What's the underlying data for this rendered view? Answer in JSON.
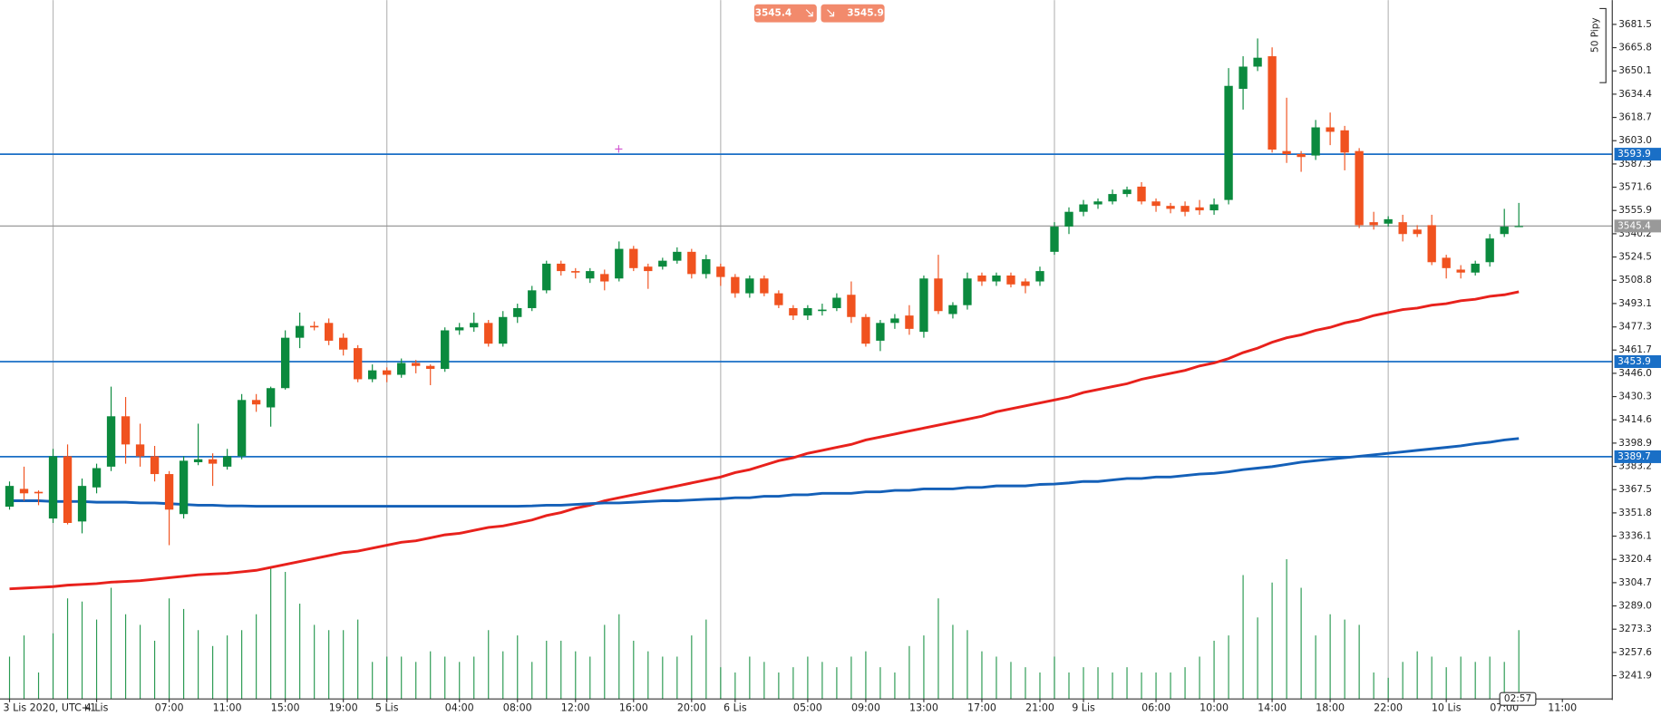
{
  "chart_data": {
    "type": "candlestick",
    "categories": [
      "3 Lis 2020, UTC+1",
      null,
      null,
      null,
      null,
      null,
      "4 Lis",
      null,
      null,
      null,
      null,
      "07:00",
      null,
      null,
      null,
      "11:00",
      null,
      null,
      null,
      "15:00",
      null,
      null,
      null,
      "19:00",
      null,
      null,
      "5 Lis",
      null,
      null,
      null,
      null,
      "04:00",
      null,
      null,
      null,
      "08:00",
      null,
      null,
      null,
      "12:00",
      null,
      null,
      null,
      "16:00",
      null,
      null,
      null,
      "20:00",
      null,
      null,
      "6 Lis",
      null,
      null,
      null,
      null,
      "05:00",
      null,
      null,
      null,
      "09:00",
      null,
      null,
      null,
      "13:00",
      null,
      null,
      null,
      "17:00",
      null,
      null,
      null,
      "21:00",
      null,
      null,
      "9 Lis",
      null,
      null,
      null,
      null,
      "06:00",
      null,
      null,
      null,
      "10:00",
      null,
      null,
      null,
      "14:00",
      null,
      null,
      null,
      "18:00",
      null,
      null,
      null,
      "22:00",
      null,
      null,
      null,
      "10 Lis",
      null,
      null,
      null,
      "07:00",
      null,
      null,
      null,
      "11:00"
    ],
    "open": [
      3356,
      3368,
      3366,
      3348,
      3390,
      3346,
      3369,
      3383,
      3417,
      3398,
      3390,
      3378,
      3351,
      3386,
      3388,
      3383,
      3390,
      3428,
      3423,
      3436,
      3470,
      3478,
      3480,
      3470,
      3463,
      3442,
      3448,
      3445,
      3453,
      3451,
      3449,
      3475,
      3477,
      3480,
      3466,
      3484,
      3490,
      3502,
      3520,
      3515,
      3510,
      3513,
      3510,
      3530,
      3518,
      3518,
      3522,
      3528,
      3513,
      3518,
      3511,
      3500,
      3510,
      3500,
      3490,
      3485,
      3488,
      3490,
      3499,
      3484,
      3468,
      3480,
      3485,
      3474,
      3510,
      3486,
      3492,
      3512,
      3508,
      3512,
      3508,
      3508,
      3528,
      3545,
      3555,
      3560,
      3562,
      3567,
      3572,
      3562,
      3559,
      3559,
      3558,
      3556,
      3563,
      3638,
      3653,
      3660,
      3596,
      3594,
      3593,
      3612,
      3610,
      3596,
      3548,
      3547,
      3548,
      3543,
      3546,
      3524,
      3516,
      3514,
      3521,
      3540,
      3545,
      null,
      null,
      null
    ],
    "high": [
      3373,
      3383,
      3367,
      3395,
      3398,
      3375,
      3385,
      3437,
      3430,
      3412,
      3397,
      3380,
      3390,
      3412,
      3392,
      3395,
      3432,
      3432,
      3437,
      3475,
      3487,
      3481,
      3483,
      3473,
      3465,
      3452,
      3450,
      3456,
      3455,
      3452,
      3477,
      3480,
      3487,
      3482,
      3488,
      3493,
      3505,
      3522,
      3522,
      3517,
      3517,
      3516,
      3535,
      3532,
      3520,
      3524,
      3531,
      3530,
      3526,
      3520,
      3513,
      3512,
      3512,
      3502,
      3492,
      3492,
      3493,
      3500,
      3508,
      3486,
      3482,
      3486,
      3492,
      3512,
      3526,
      3494,
      3514,
      3514,
      3514,
      3514,
      3510,
      3518,
      3548,
      3558,
      3563,
      3564,
      3570,
      3572,
      3575,
      3564,
      3561,
      3562,
      3563,
      3564,
      3652,
      3660,
      3672,
      3666,
      3632,
      3596,
      3617,
      3622,
      3613,
      3598,
      3555,
      3552,
      3553,
      3546,
      3553,
      3526,
      3519,
      3522,
      3540,
      3557,
      3561,
      null,
      null,
      null
    ],
    "low": [
      3354,
      3360,
      3357,
      3345,
      3344,
      3338,
      3365,
      3380,
      3385,
      3383,
      3373,
      3330,
      3348,
      3384,
      3370,
      3381,
      3388,
      3420,
      3410,
      3435,
      3463,
      3475,
      3465,
      3458,
      3440,
      3440,
      3440,
      3443,
      3446,
      3438,
      3447,
      3472,
      3474,
      3464,
      3464,
      3480,
      3488,
      3500,
      3512,
      3510,
      3507,
      3502,
      3508,
      3515,
      3503,
      3516,
      3520,
      3510,
      3510,
      3505,
      3497,
      3497,
      3498,
      3490,
      3482,
      3482,
      3485,
      3488,
      3480,
      3464,
      3461,
      3476,
      3472,
      3470,
      3486,
      3483,
      3489,
      3505,
      3505,
      3504,
      3500,
      3505,
      3526,
      3540,
      3552,
      3557,
      3560,
      3565,
      3560,
      3555,
      3554,
      3552,
      3553,
      3553,
      3560,
      3624,
      3650,
      3595,
      3588,
      3582,
      3590,
      3600,
      3583,
      3544,
      3543,
      3545,
      3535,
      3538,
      3519,
      3510,
      3510,
      3512,
      3518,
      3538,
      3545,
      null,
      null,
      null
    ],
    "close": [
      3370,
      3365,
      3365,
      3390,
      3345,
      3370,
      3382,
      3417,
      3398,
      3390,
      3378,
      3354,
      3387,
      3388,
      3385,
      3390,
      3428,
      3425,
      3436,
      3470,
      3478,
      3477,
      3468,
      3462,
      3442,
      3448,
      3445,
      3453,
      3451,
      3449,
      3475,
      3477,
      3480,
      3466,
      3484,
      3490,
      3502,
      3520,
      3515,
      3514,
      3515,
      3508,
      3530,
      3517,
      3515,
      3522,
      3528,
      3513,
      3523,
      3511,
      3500,
      3510,
      3500,
      3492,
      3485,
      3490,
      3489,
      3497,
      3484,
      3466,
      3480,
      3483,
      3476,
      3510,
      3488,
      3492,
      3510,
      3508,
      3512,
      3506,
      3505,
      3515,
      3545,
      3555,
      3560,
      3562,
      3567,
      3570,
      3562,
      3559,
      3557,
      3555,
      3556,
      3560,
      3640,
      3653,
      3659,
      3597,
      3594,
      3592,
      3612,
      3609,
      3595,
      3546,
      3546,
      3550,
      3540,
      3540,
      3521,
      3517,
      3514,
      3520,
      3537,
      3545,
      3545.4,
      null,
      null,
      null
    ],
    "volume": [
      40,
      60,
      25,
      62,
      95,
      92,
      75,
      105,
      80,
      70,
      55,
      95,
      85,
      65,
      50,
      60,
      65,
      80,
      125,
      120,
      90,
      70,
      65,
      65,
      75,
      35,
      40,
      40,
      35,
      45,
      40,
      35,
      40,
      65,
      45,
      60,
      35,
      55,
      55,
      45,
      40,
      70,
      80,
      55,
      45,
      40,
      40,
      60,
      75,
      30,
      25,
      40,
      35,
      25,
      30,
      40,
      35,
      30,
      40,
      45,
      30,
      25,
      50,
      60,
      95,
      70,
      65,
      45,
      40,
      35,
      30,
      25,
      40,
      25,
      30,
      30,
      25,
      30,
      25,
      25,
      25,
      30,
      40,
      55,
      60,
      117,
      77,
      110,
      132,
      105,
      60,
      80,
      75,
      70,
      25,
      20,
      35,
      45,
      40,
      30,
      40,
      35,
      40,
      35,
      65,
      null,
      null,
      null
    ],
    "volume_lim": [
      0,
      660
    ],
    "up_color": "#0b8a3e",
    "down_color": "#f0521f",
    "volume_color": "#2a9a52",
    "lines": [
      {
        "color": "#e8211c",
        "values": [
          3300.5,
          3301,
          3301.5,
          3302,
          3303,
          3303.5,
          3304,
          3305,
          3305.5,
          3306,
          3307,
          3308,
          3309,
          3310,
          3310.5,
          3311,
          3312,
          3313,
          3315,
          3317,
          3319,
          3321,
          3323,
          3325,
          3326,
          3328,
          3330,
          3332,
          3333,
          3335,
          3337,
          3338,
          3340,
          3342,
          3343,
          3345,
          3347,
          3350,
          3352,
          3355,
          3357,
          3360,
          3362,
          3364,
          3366,
          3368,
          3370,
          3372,
          3374,
          3376,
          3379,
          3381,
          3384,
          3387,
          3389,
          3392,
          3394,
          3396,
          3398,
          3401,
          3403,
          3405,
          3407,
          3409,
          3411,
          3413,
          3415,
          3417,
          3420,
          3422,
          3424,
          3426,
          3428,
          3430,
          3433,
          3435,
          3437,
          3439,
          3442,
          3444,
          3446,
          3448,
          3451,
          3453,
          3456,
          3460,
          3463,
          3467,
          3470,
          3472,
          3475,
          3477,
          3480,
          3482,
          3485,
          3487,
          3489,
          3490,
          3492,
          3493,
          3495,
          3496,
          3498,
          3499,
          3501,
          null,
          null,
          null
        ]
      },
      {
        "color": "#1460b8",
        "values": [
          3360,
          3360,
          3360,
          3359.5,
          3359.5,
          3359.5,
          3359,
          3359,
          3359,
          3358.5,
          3358.5,
          3358,
          3357.5,
          3357,
          3357,
          3356.5,
          3356.5,
          3356.3,
          3356.3,
          3356.3,
          3356.3,
          3356.3,
          3356.3,
          3356.3,
          3356.3,
          3356.3,
          3356.3,
          3356.3,
          3356.3,
          3356.3,
          3356.3,
          3356.3,
          3356.3,
          3356.3,
          3356.3,
          3356.3,
          3356.5,
          3357,
          3357,
          3357.5,
          3358,
          3358.5,
          3358.5,
          3359,
          3359.5,
          3360,
          3360,
          3360.5,
          3361,
          3361.3,
          3362,
          3362,
          3363,
          3363,
          3364,
          3364,
          3365,
          3365,
          3365,
          3366,
          3366,
          3367,
          3367,
          3368,
          3368,
          3368,
          3369,
          3369,
          3370,
          3370,
          3370,
          3371,
          3371.3,
          3372,
          3373,
          3373,
          3374,
          3375,
          3375,
          3376,
          3376,
          3377,
          3378,
          3378.4,
          3379.5,
          3381,
          3382,
          3383,
          3384.5,
          3386,
          3387,
          3388,
          3389,
          3390,
          3391,
          3392,
          3393,
          3394,
          3395,
          3396,
          3397,
          3398.5,
          3399.5,
          3401,
          3402,
          null,
          null,
          null
        ]
      }
    ],
    "levels": [
      {
        "value": 3593.9,
        "color": "#1a6fc6"
      },
      {
        "value": 3453.9,
        "color": "#1a6fc6"
      },
      {
        "value": 3389.7,
        "color": "#1a6fc6"
      }
    ],
    "last_price": 3545.4,
    "last_price_color": "#999999",
    "bid": 3545.4,
    "ask": 3545.9,
    "quote_color": "#f28a6c",
    "pip_scale_label": "50 Pipy",
    "time_left": "02:57",
    "ylim": [
      3226.2,
      3697.9
    ],
    "yticks": [
      3681.5,
      3665.8,
      3650.1,
      3634.4,
      3618.7,
      {
        "value": 3603,
        "label": "3603.0"
      },
      3587.3,
      3571.6,
      3555.9,
      3540.2,
      3524.5,
      3508.8,
      3493.1,
      3477.3,
      3461.7,
      {
        "value": 3446,
        "label": "3446.0"
      },
      3430.3,
      3414.6,
      3398.9,
      3383.2,
      3367.5,
      3351.8,
      3336.1,
      3320.4,
      3304.7,
      {
        "value": 3289,
        "label": "3289.0"
      },
      3273.3,
      3257.6,
      3241.9
    ]
  }
}
